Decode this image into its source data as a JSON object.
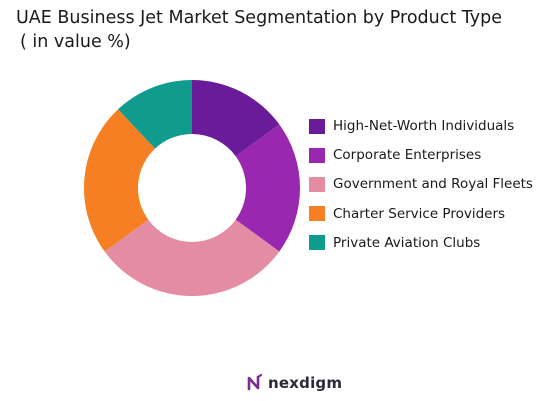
{
  "chart_data": {
    "type": "pie",
    "title": "UAE Business Jet Market Segmentation by Product Type",
    "subtitle": "( in value %)",
    "series": [
      {
        "name": "High-Net-Worth Individuals",
        "value": 15,
        "color": "#6a1b9a"
      },
      {
        "name": "Corporate Enterprises",
        "value": 20,
        "color": "#9a27b0"
      },
      {
        "name": "Government and Royal Fleets",
        "value": 30,
        "color": "#e38ca3"
      },
      {
        "name": "Charter Service Providers",
        "value": 23,
        "color": "#f57f22"
      },
      {
        "name": "Private Aviation Clubs",
        "value": 12,
        "color": "#0f9b8e"
      }
    ],
    "legend_position": "right"
  },
  "brand": {
    "name": "nexdigm",
    "icon": "nexdigm-logo-icon",
    "color": "#7b2d8e"
  }
}
